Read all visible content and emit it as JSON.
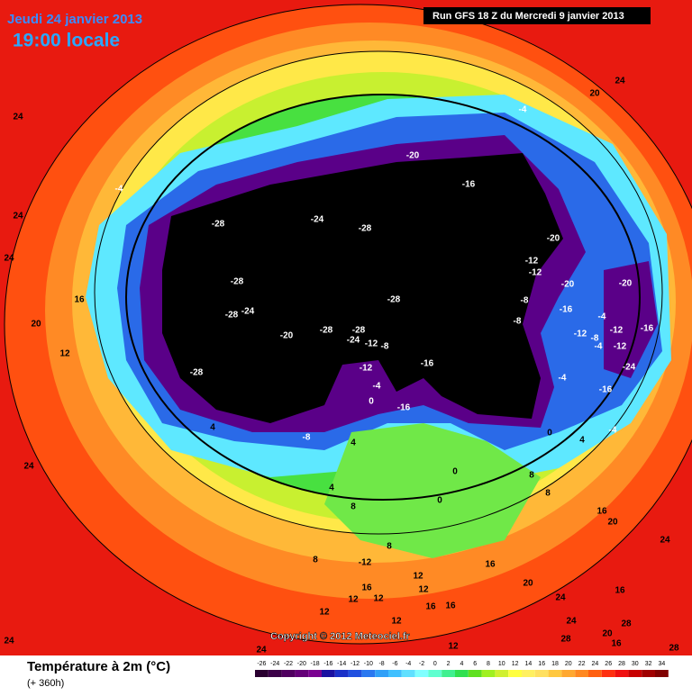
{
  "header": {
    "date": "Jeudi 24 janvier 2013",
    "time": "19:00 locale",
    "run": "Run GFS 18 Z du Mercredi 9 janvier 2013"
  },
  "map": {
    "copyright": "Copyright © 2012 Meteociel.fr",
    "labels": [
      24,
      24,
      24,
      16,
      20,
      12,
      24,
      24,
      24,
      -4,
      -28,
      -24,
      -28,
      -28,
      -28,
      -24,
      -28,
      -20,
      -28,
      -28,
      -24,
      -12,
      -8,
      -12,
      -4,
      0,
      -16,
      -28,
      -16,
      -20,
      -4,
      20,
      24,
      -20,
      -12,
      -12,
      -20,
      -8,
      -16,
      -8,
      -20,
      -4,
      -16,
      -12,
      -8,
      -12,
      -4,
      -12,
      -24,
      -4,
      -16,
      -4,
      0,
      4,
      4,
      4,
      -8,
      -16,
      0,
      8,
      8,
      8,
      4,
      0,
      16,
      20,
      24,
      16,
      12,
      12,
      -12,
      8,
      8,
      16,
      12,
      12,
      12,
      12,
      16,
      16,
      20,
      24,
      16,
      24,
      20,
      28,
      28,
      16,
      12,
      28
    ],
    "legend": {
      "title": "Température à 2m (°C)",
      "subtitle": "(+ 360h)",
      "ticks": [
        -26,
        -24,
        -22,
        -20,
        -18,
        -16,
        -14,
        -12,
        -10,
        -8,
        -6,
        -4,
        -2,
        0,
        2,
        4,
        6,
        8,
        10,
        12,
        14,
        16,
        18,
        20,
        22,
        24,
        26,
        28,
        30,
        32,
        34
      ],
      "colors": [
        "#2a0030",
        "#3c0048",
        "#500060",
        "#640078",
        "#7a0090",
        "#1a10a0",
        "#1a30c8",
        "#2050e0",
        "#2a78f0",
        "#30a0f8",
        "#40c0ff",
        "#60e0ff",
        "#80ffff",
        "#60ffd0",
        "#40f090",
        "#30e050",
        "#60e020",
        "#a0f020",
        "#d0f030",
        "#ffff40",
        "#fff060",
        "#ffe060",
        "#ffc840",
        "#ffa830",
        "#ff8820",
        "#ff6010",
        "#ff3010",
        "#f01010",
        "#c80000",
        "#a00000",
        "#800000"
      ]
    }
  }
}
